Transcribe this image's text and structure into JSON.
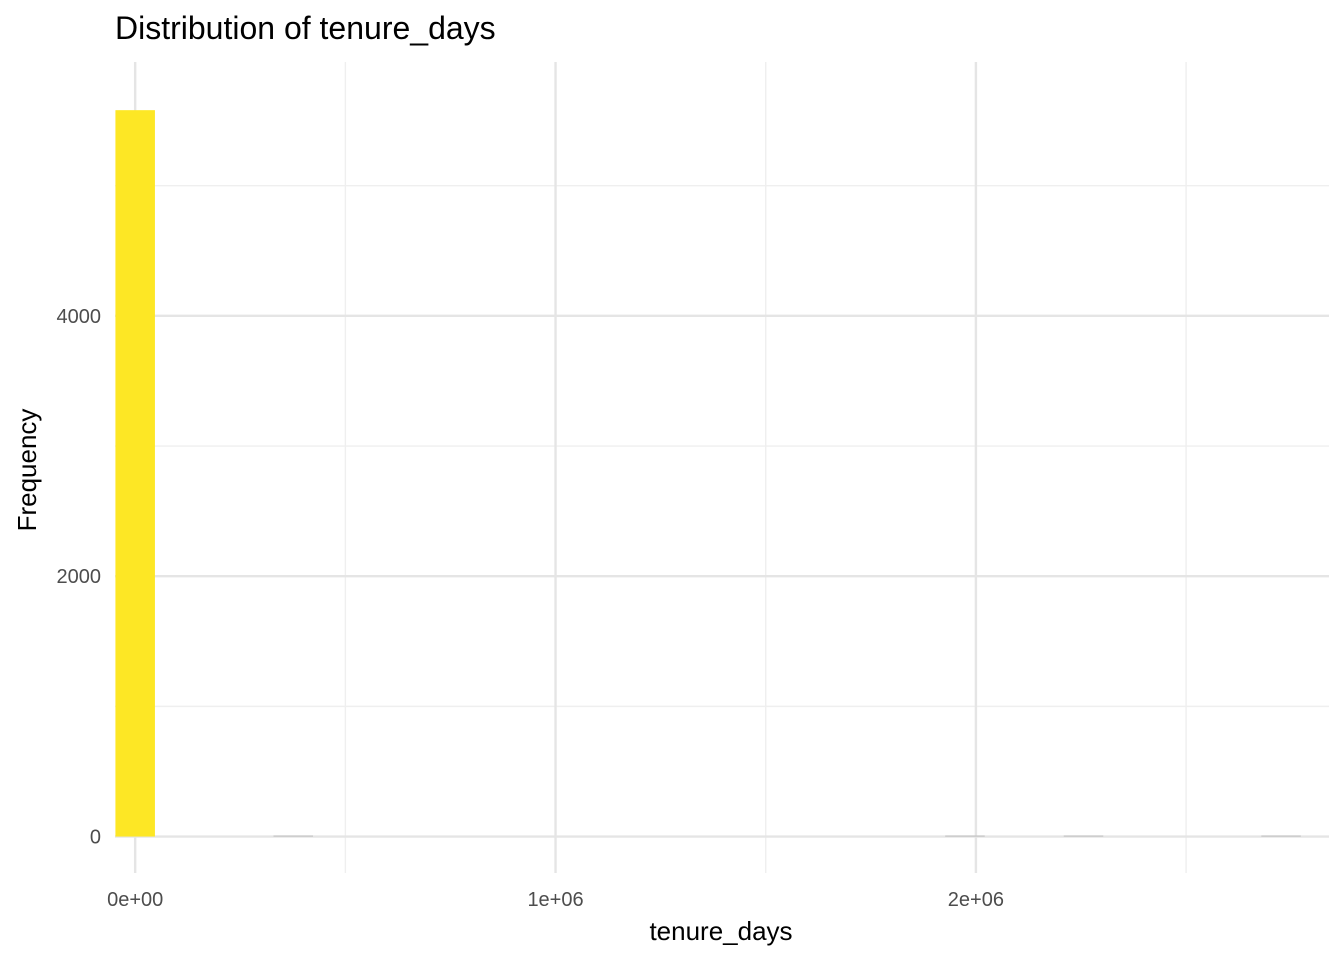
{
  "chart_data": {
    "type": "bar",
    "title": "Distribution of tenure_days",
    "xlabel": "tenure_days",
    "ylabel": "Frequency",
    "xlim": [
      -48000,
      2840000
    ],
    "ylim": [
      -280,
      5950
    ],
    "x_ticks": [
      {
        "value": 0,
        "label": "0e+00"
      },
      {
        "value": 1000000,
        "label": "1e+06"
      },
      {
        "value": 2000000,
        "label": "2e+06"
      }
    ],
    "x_minor_ticks": [
      500000,
      1500000,
      2500000
    ],
    "y_ticks": [
      {
        "value": 0,
        "label": "0"
      },
      {
        "value": 2000,
        "label": "2000"
      },
      {
        "value": 4000,
        "label": "4000"
      }
    ],
    "y_minor_ticks": [
      1000,
      3000,
      5000
    ],
    "bin_width": 94000,
    "bins": [
      {
        "x": 0,
        "count": 5580,
        "color": "#FDE725"
      },
      {
        "x": 376000,
        "count": 2,
        "color": "#BBBBBB"
      },
      {
        "x": 1974000,
        "count": 1,
        "color": "#BBBBBB"
      },
      {
        "x": 2256000,
        "count": 1,
        "color": "#BBBBBB"
      },
      {
        "x": 2726000,
        "count": 1,
        "color": "#BBBBBB"
      }
    ],
    "grid": true,
    "legend": "none"
  }
}
